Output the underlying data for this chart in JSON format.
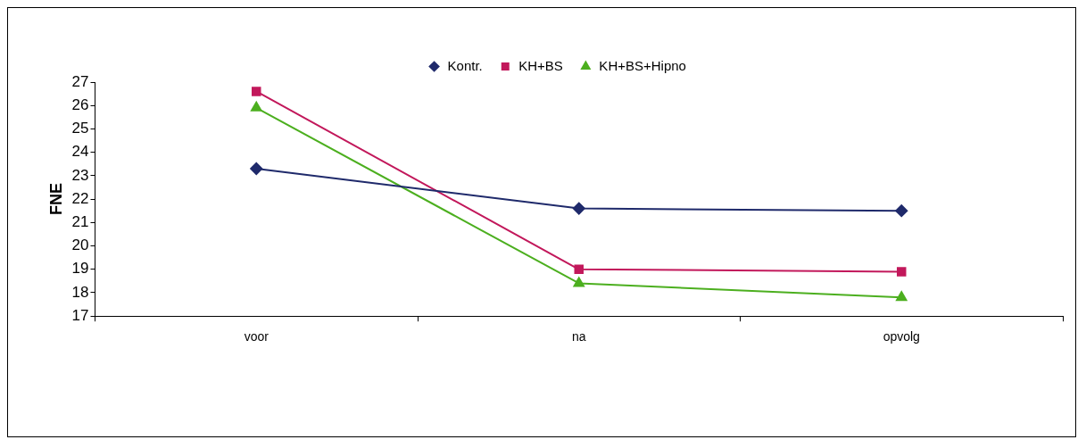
{
  "chart_data": {
    "type": "line",
    "ylabel": "FNE",
    "categories": [
      "voor",
      "na",
      "opvolg"
    ],
    "series": [
      {
        "name": "Kontr.",
        "color": "#1f2a6b",
        "values": [
          23.3,
          21.6,
          21.5
        ],
        "marker": "diamond"
      },
      {
        "name": "KH+BS",
        "color": "#c2185b",
        "values": [
          26.6,
          19.0,
          18.9
        ],
        "marker": "square"
      },
      {
        "name": "KH+BS+Hipno",
        "color": "#4caf1f",
        "values": [
          25.9,
          18.4,
          17.8
        ],
        "marker": "triangle"
      }
    ],
    "ylim": [
      17,
      27
    ],
    "yticks": [
      17,
      18,
      19,
      20,
      21,
      22,
      23,
      24,
      25,
      26,
      27
    ],
    "grid": false,
    "legend": "top"
  }
}
